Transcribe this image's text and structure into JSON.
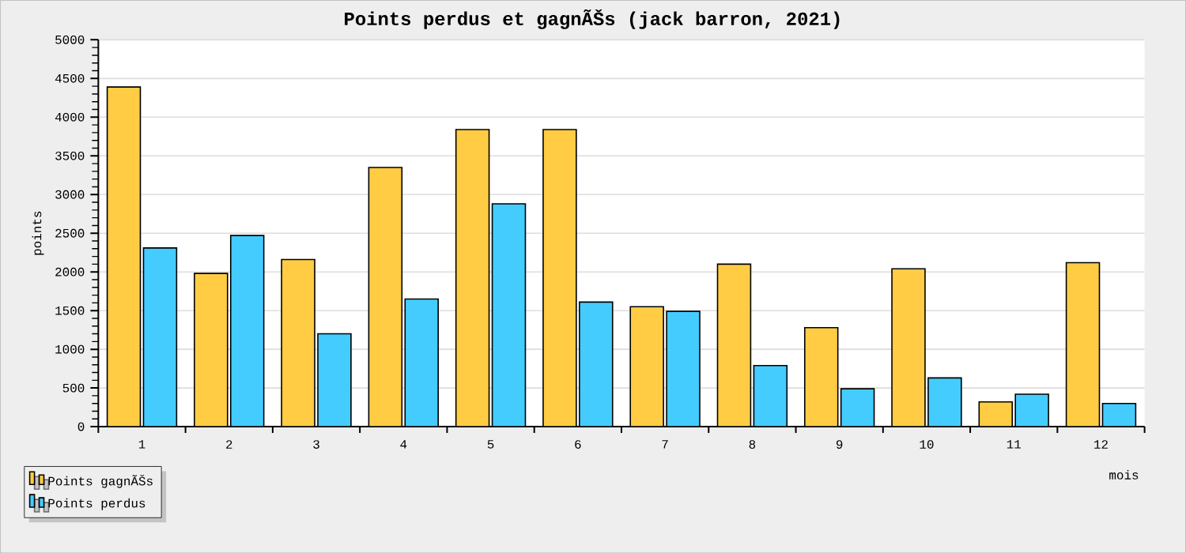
{
  "chart_data": {
    "type": "bar",
    "title": "Points perdus et gagnÃŠs (jack barron, 2021)",
    "xlabel": "mois",
    "ylabel": "points",
    "categories": [
      "1",
      "2",
      "3",
      "4",
      "5",
      "6",
      "7",
      "8",
      "9",
      "10",
      "11",
      "12"
    ],
    "series": [
      {
        "name": "Points gagnÃŠs",
        "color": "#ffcc44",
        "values": [
          4390,
          1980,
          2160,
          3350,
          3840,
          3840,
          1550,
          2100,
          1280,
          2040,
          320,
          2120
        ]
      },
      {
        "name": "Points perdus",
        "color": "#44ccff",
        "values": [
          2310,
          2470,
          1200,
          1650,
          2880,
          1610,
          1490,
          790,
          490,
          630,
          420,
          300
        ]
      }
    ],
    "ylim": [
      0,
      5000
    ],
    "yticks": [
      0,
      500,
      1000,
      1500,
      2000,
      2500,
      3000,
      3500,
      4000,
      4500,
      5000
    ],
    "grid": "y",
    "legend": "bottom left"
  }
}
